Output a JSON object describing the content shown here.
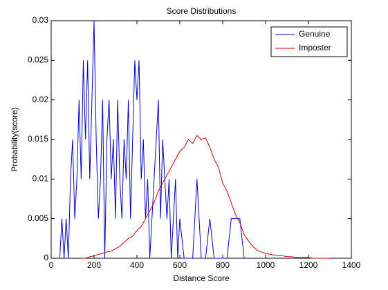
{
  "chart_data": {
    "type": "line",
    "title": "Score Distributions",
    "xlabel": "Distance Score",
    "ylabel": "Probability(score)",
    "xlim": [
      0,
      1400
    ],
    "xticks": [
      0,
      200,
      400,
      600,
      800,
      1000,
      1200,
      1400
    ],
    "ylim": [
      0,
      0.03
    ],
    "yticks": [
      0,
      0.005,
      0.01,
      0.015,
      0.02,
      0.025,
      0.03
    ],
    "legend": "upper right",
    "grid": false,
    "series": [
      {
        "name": "Genuine",
        "color": "#0000cc",
        "x": [
          40,
          50,
          60,
          70,
          80,
          90,
          100,
          110,
          120,
          130,
          140,
          150,
          160,
          170,
          180,
          190,
          200,
          210,
          220,
          230,
          240,
          250,
          260,
          270,
          280,
          290,
          300,
          310,
          320,
          330,
          340,
          350,
          360,
          370,
          380,
          390,
          400,
          410,
          420,
          430,
          440,
          450,
          460,
          470,
          480,
          490,
          500,
          510,
          520,
          530,
          540,
          550,
          560,
          570,
          580,
          590,
          600,
          620,
          640,
          660,
          680,
          700,
          720,
          740,
          760,
          780,
          800,
          820,
          840,
          860,
          880,
          900
        ],
        "values": [
          0,
          0.005,
          0,
          0.005,
          0,
          0.01,
          0.015,
          0.005,
          0.01,
          0.02,
          0.01,
          0.025,
          0.015,
          0.025,
          0.01,
          0.02,
          0.03,
          0.015,
          0.005,
          0.01,
          0.02,
          0,
          0.015,
          0.02,
          0.01,
          0.015,
          0.005,
          0.02,
          0.01,
          0.005,
          0.015,
          0.01,
          0.02,
          0.005,
          0.015,
          0.025,
          0.02,
          0.025,
          0.01,
          0.015,
          0.005,
          0.01,
          0,
          0.005,
          0.01,
          0.015,
          0.02,
          0.005,
          0.015,
          0.01,
          0.005,
          0.01,
          0,
          0.005,
          0.01,
          0,
          0.005,
          0,
          0,
          0,
          0.01,
          0,
          0,
          0.005,
          0,
          0,
          0,
          0,
          0.005,
          0.005,
          0.005,
          0
        ]
      },
      {
        "name": "Imposter",
        "color": "#cc0000",
        "x": [
          140,
          160,
          180,
          200,
          220,
          240,
          260,
          280,
          300,
          320,
          340,
          360,
          380,
          400,
          420,
          440,
          460,
          480,
          500,
          520,
          540,
          560,
          580,
          600,
          620,
          640,
          660,
          680,
          700,
          720,
          740,
          760,
          780,
          800,
          820,
          840,
          860,
          880,
          900,
          920,
          940,
          960,
          980,
          1000,
          1020,
          1040,
          1060,
          1080,
          1100,
          1120,
          1140,
          1160,
          1180,
          1200,
          1220,
          1240,
          1260,
          1280,
          1300
        ],
        "values": [
          0,
          0,
          0.0002,
          0.0003,
          0.0005,
          0.0006,
          0.0008,
          0.0009,
          0.0012,
          0.0015,
          0.002,
          0.0025,
          0.0028,
          0.0035,
          0.004,
          0.005,
          0.006,
          0.007,
          0.0085,
          0.0095,
          0.0105,
          0.0115,
          0.0125,
          0.0135,
          0.014,
          0.015,
          0.0145,
          0.0155,
          0.015,
          0.0152,
          0.014,
          0.0125,
          0.0115,
          0.0095,
          0.0085,
          0.007,
          0.0055,
          0.0045,
          0.003,
          0.0022,
          0.0015,
          0.001,
          0.0008,
          0.0006,
          0.0005,
          0.0004,
          0.0003,
          0.0003,
          0.0002,
          0.0002,
          0.0001,
          0.0001,
          0.0001,
          0.0001,
          0,
          0,
          0,
          0,
          0
        ]
      }
    ]
  }
}
